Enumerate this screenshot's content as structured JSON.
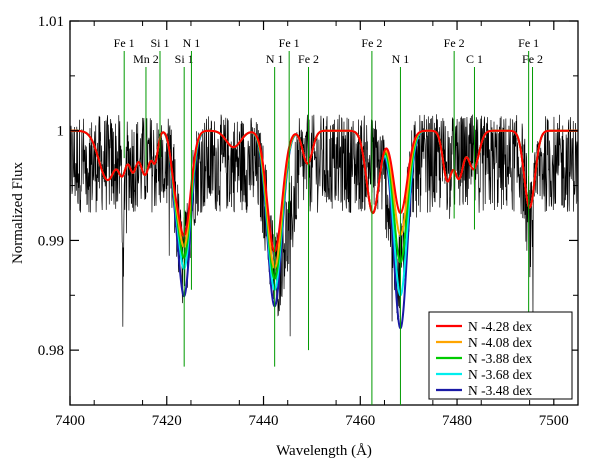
{
  "chart_data": {
    "type": "line",
    "title": "",
    "xlabel": "Wavelength (Å)",
    "ylabel": "Normalized Flux",
    "xlim": [
      7400,
      7505
    ],
    "ylim": [
      0.975,
      1.01
    ],
    "x_ticks": [
      7400,
      7420,
      7440,
      7460,
      7480,
      7500
    ],
    "x_tick_labels": [
      "7400",
      "7420",
      "7440",
      "7460",
      "7480",
      "7500"
    ],
    "y_ticks": [
      0.98,
      0.99,
      1.0,
      1.01
    ],
    "y_tick_labels": [
      "0.98",
      "0.99",
      "1",
      "1.01"
    ],
    "grid": false,
    "legend_position": "bottom-right",
    "observed": {
      "color": "#000000",
      "x_range": [
        7400,
        7505
      ],
      "continuum": 0.997,
      "noise_amplitude": 0.0045,
      "dips": [
        {
          "center": 7411,
          "depth": 0.012,
          "width": 0.15
        },
        {
          "center": 7423.4,
          "depth": 0.009,
          "width": 1.2
        },
        {
          "center": 7442.6,
          "depth": 0.01,
          "width": 1.6
        },
        {
          "center": 7445.5,
          "depth": 0.004,
          "width": 0.8
        },
        {
          "center": 7467.8,
          "depth": 0.01,
          "width": 1.4
        },
        {
          "center": 7495.2,
          "depth": 0.006,
          "width": 0.8
        }
      ]
    },
    "base_profile": {
      "continuum": 1.0,
      "weak_lines": [
        {
          "center": 7407.8,
          "depth": 0.0045,
          "width": 1.8
        },
        {
          "center": 7410.9,
          "depth": 0.003,
          "width": 0.8
        },
        {
          "center": 7413.0,
          "depth": 0.0035,
          "width": 0.8
        },
        {
          "center": 7415.5,
          "depth": 0.004,
          "width": 1.0
        },
        {
          "center": 7417.6,
          "depth": 0.0025,
          "width": 0.6
        },
        {
          "center": 7421.5,
          "depth": 0.0025,
          "width": 0.8
        },
        {
          "center": 7433.8,
          "depth": 0.0015,
          "width": 1.5
        },
        {
          "center": 7449.1,
          "depth": 0.003,
          "width": 1.0
        },
        {
          "center": 7462.6,
          "depth": 0.0075,
          "width": 1.3
        },
        {
          "center": 7478.0,
          "depth": 0.0045,
          "width": 0.9
        },
        {
          "center": 7480.4,
          "depth": 0.0042,
          "width": 0.9
        },
        {
          "center": 7483.4,
          "depth": 0.0035,
          "width": 1.1
        },
        {
          "center": 7495.0,
          "depth": 0.007,
          "width": 1.1
        }
      ]
    },
    "nitrogen_lines": [
      {
        "center": 7423.6,
        "width": 1.3
      },
      {
        "center": 7442.3,
        "width": 1.5
      },
      {
        "center": 7468.3,
        "width": 1.4
      }
    ],
    "series": [
      {
        "name": "N -4.28 dex",
        "color": "#ff0000",
        "n_depths": [
          0.0095,
          0.011,
          0.0075
        ]
      },
      {
        "name": "N -4.08 dex",
        "color": "#ffa500",
        "n_depths": [
          0.0105,
          0.0125,
          0.0095
        ]
      },
      {
        "name": "N -3.88 dex",
        "color": "#00cc00",
        "n_depths": [
          0.0115,
          0.0135,
          0.012
        ]
      },
      {
        "name": "N -3.68 dex",
        "color": "#00eeee",
        "n_depths": [
          0.0125,
          0.0145,
          0.015
        ]
      },
      {
        "name": "N -3.48 dex",
        "color": "#1a1aa6",
        "n_depths": [
          0.015,
          0.016,
          0.018
        ]
      }
    ],
    "line_markers": {
      "color": "#009900",
      "items": [
        {
          "label": "Fe 1",
          "x": 7411.2,
          "label_row": 1,
          "line_bottom": 0.9975
        },
        {
          "label": "Mn 2",
          "x": 7415.7,
          "label_row": 2,
          "line_bottom": 0.9965
        },
        {
          "label": "Si 1",
          "x": 7418.6,
          "label_row": 1,
          "line_bottom": 0.9975
        },
        {
          "label": "Si 1",
          "x": 7423.6,
          "label_row": 2,
          "line_bottom": 0.9785
        },
        {
          "label": "N 1",
          "x": 7425.1,
          "label_row": 1,
          "line_bottom": 0.9855
        },
        {
          "label": "N 1",
          "x": 7442.3,
          "label_row": 2,
          "line_bottom": 0.9785
        },
        {
          "label": "Fe 1",
          "x": 7445.3,
          "label_row": 1,
          "line_bottom": 0.9925
        },
        {
          "label": "Fe 2",
          "x": 7449.3,
          "label_row": 2,
          "line_bottom": 0.98
        },
        {
          "label": "Fe 2",
          "x": 7462.4,
          "label_row": 1,
          "line_bottom": 0.975
        },
        {
          "label": "N 1",
          "x": 7468.3,
          "label_row": 2,
          "line_bottom": 0.975
        },
        {
          "label": "Fe 2",
          "x": 7479.4,
          "label_row": 1,
          "line_bottom": 0.992
        },
        {
          "label": "C 1",
          "x": 7483.6,
          "label_row": 2,
          "line_bottom": 0.991
        },
        {
          "label": "Fe 1",
          "x": 7494.8,
          "label_row": 1,
          "line_bottom": 0.9815
        },
        {
          "label": "Fe 2",
          "x": 7495.6,
          "label_row": 2,
          "line_bottom": 0.998
        }
      ]
    }
  }
}
